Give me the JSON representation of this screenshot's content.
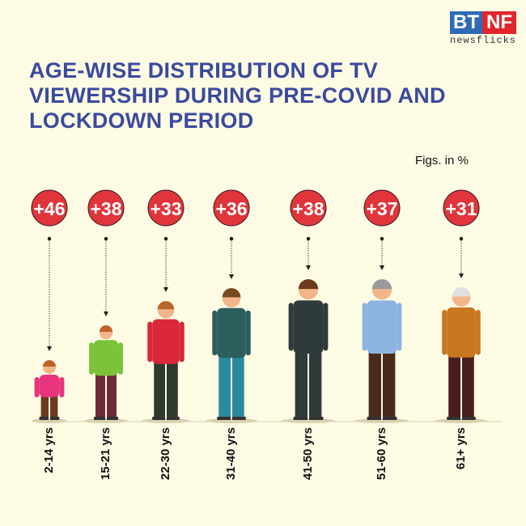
{
  "logo": {
    "left": "BT",
    "right": "NF",
    "sub": "newsflicks"
  },
  "title": "AGE-WISE DISTRIBUTION OF TV VIEWERSHIP DURING PRE-COVID AND LOCKDOWN PERIOD",
  "note": "Figs. in %",
  "colors": {
    "background": "#fdfbe4",
    "title": "#3b4a9e",
    "badge": "#e0353b"
  },
  "chart_data": {
    "type": "bar",
    "categories": [
      "2-14 yrs",
      "15-21 yrs",
      "22-30 yrs",
      "31-40 yrs",
      "41-50 yrs",
      "51-60 yrs",
      "61+ yrs"
    ],
    "values": [
      46,
      38,
      33,
      36,
      38,
      37,
      31
    ],
    "value_labels": [
      "+46",
      "+38",
      "+33",
      "+36",
      "+38",
      "+37",
      "+31"
    ],
    "title": "AGE-WISE DISTRIBUTION OF TV VIEWERSHIP DURING PRE-COVID AND LOCKDOWN PERIOD",
    "unit": "Figs. in %"
  }
}
